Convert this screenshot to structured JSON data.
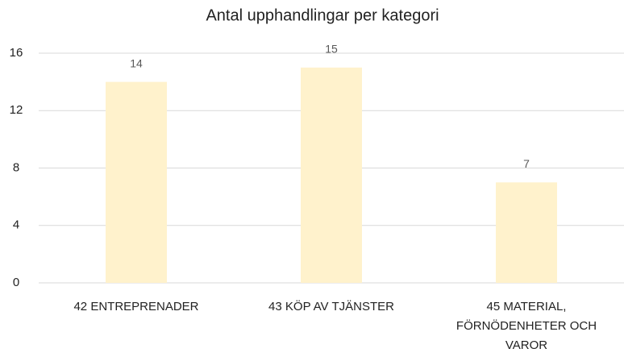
{
  "chart_data": {
    "type": "bar",
    "title": "Antal upphandlingar per kategori",
    "categories": [
      "42 ENTREPRENADER",
      "43 KÖP AV TJÄNSTER",
      "45 MATERIAL, FÖRNÖDENHETER OCH VAROR"
    ],
    "values": [
      14,
      15,
      7
    ],
    "color": "#fff2cc",
    "ylim": [
      0,
      16
    ],
    "yticks": [
      0,
      4,
      8,
      12,
      16
    ],
    "grid": true
  }
}
